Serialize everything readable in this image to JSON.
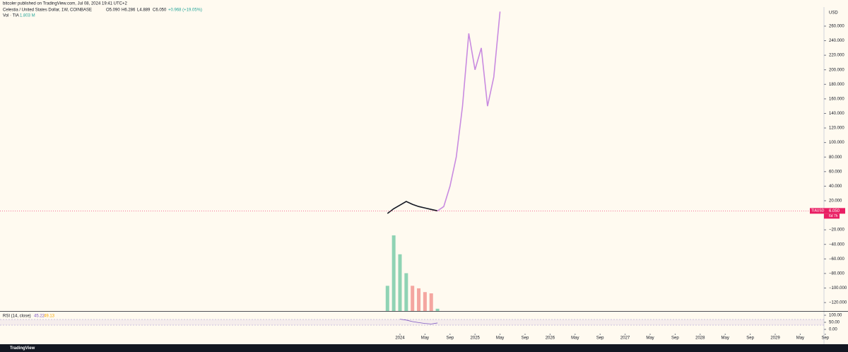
{
  "header": {
    "publisher": "bitcoler published on TradingView.com, Jul 08, 2024 19:41 UTC+2"
  },
  "legend": {
    "symbol": "Celestia / United States Dollar, 1W, COINBASE",
    "ohlc": [
      "O5.090",
      "H6.286",
      "L4.889",
      "C6.050",
      "+0.968 (+19.05%)"
    ],
    "volume_label": "Vol · TIA",
    "volume_value": "1.803 M"
  },
  "footer": {
    "brand": "TradingView"
  },
  "chart_data": {
    "type": "line",
    "currency": "USD",
    "x": [
      "2023-11",
      "2023-12",
      "2024-01",
      "2024-02",
      "2024-03",
      "2024-04",
      "2024-05",
      "2024-06",
      "2024-07",
      "2024-08",
      "2024-09",
      "2024-10",
      "2024-11",
      "2024-12",
      "2025-01",
      "2025-02",
      "2025-03",
      "2025-04",
      "2025-05"
    ],
    "series": [
      {
        "name": "TIAUSD",
        "color": "#131722",
        "values": [
          2.5,
          9,
          14,
          19,
          15,
          12,
          10,
          8,
          6.05,
          null,
          null,
          null,
          null,
          null,
          null,
          null,
          null,
          null,
          null
        ]
      },
      {
        "name": "Projection",
        "color": "#c98be0",
        "values": [
          null,
          null,
          null,
          null,
          null,
          null,
          null,
          null,
          6,
          12,
          40,
          80,
          150,
          250,
          200,
          230,
          150,
          190,
          280
        ]
      }
    ],
    "ylim": [
      -131.6,
      286.2
    ],
    "yticks": [
      {
        "value": 260,
        "label": "260.000"
      },
      {
        "value": 240,
        "label": "240.000"
      },
      {
        "value": 220,
        "label": "220.000"
      },
      {
        "value": 200,
        "label": "200.000"
      },
      {
        "value": 180,
        "label": "180.000"
      },
      {
        "value": 160,
        "label": "160.000"
      },
      {
        "value": 140,
        "label": "140.000"
      },
      {
        "value": 120,
        "label": "120.000"
      },
      {
        "value": 100,
        "label": "100.000"
      },
      {
        "value": 80,
        "label": "80.000"
      },
      {
        "value": 60,
        "label": "60.000"
      },
      {
        "value": 40,
        "label": "40.000"
      },
      {
        "value": 20,
        "label": "20.000"
      },
      {
        "value": -20,
        "label": "−20.000"
      },
      {
        "value": -40,
        "label": "−40.000"
      },
      {
        "value": -60,
        "label": "−60.000"
      },
      {
        "value": -80,
        "label": "−80.000"
      },
      {
        "value": -100,
        "label": "−100.000"
      },
      {
        "value": -120,
        "label": "−120.000"
      }
    ],
    "last_price": {
      "symbol": "TIAUSD",
      "value": 6.05,
      "label": "6.050",
      "countdown": "6d 7h"
    },
    "volume": {
      "x": [
        "2023-11",
        "2023-12",
        "2024-01",
        "2024-02",
        "2024-03",
        "2024-04",
        "2024-05",
        "2024-06",
        "2024-07"
      ],
      "values": [
        20,
        60,
        45,
        30,
        20,
        18,
        15,
        14,
        1.803
      ],
      "colors": [
        "#8fd3b4",
        "#8fd3b4",
        "#8fd3b4",
        "#8fd3b4",
        "#f4a6a0",
        "#f4a6a0",
        "#f4a6a0",
        "#f4a6a0",
        "#8fd3b4"
      ]
    },
    "rsi": {
      "title": "RSI (14, close)",
      "value": 45.22,
      "ma": 49.13,
      "color": "#7e57c2",
      "ylim": [
        -25,
        125
      ],
      "yticks": [
        {
          "value": 100,
          "label": "100.00"
        },
        {
          "value": 50,
          "label": "50.00"
        },
        {
          "value": 0,
          "label": "0.00"
        }
      ],
      "x": [
        "2024-01",
        "2024-02",
        "2024-03",
        "2024-04",
        "2024-05",
        "2024-06",
        "2024-07"
      ],
      "values": [
        72,
        66,
        55,
        48,
        42,
        38,
        45.22
      ]
    },
    "xticks": [
      {
        "value": "2024-01",
        "label": "2024"
      },
      {
        "value": "2024-05",
        "label": "May"
      },
      {
        "value": "2024-09",
        "label": "Sep"
      },
      {
        "value": "2025-01",
        "label": "2025"
      },
      {
        "value": "2025-05",
        "label": "May"
      },
      {
        "value": "2025-09",
        "label": "Sep"
      },
      {
        "value": "2026-01",
        "label": "2026"
      },
      {
        "value": "2026-05",
        "label": "May"
      },
      {
        "value": "2026-09",
        "label": "Sep"
      },
      {
        "value": "2027-01",
        "label": "2027"
      },
      {
        "value": "2027-05",
        "label": "May"
      },
      {
        "value": "2027-09",
        "label": "Sep"
      },
      {
        "value": "2028-01",
        "label": "2028"
      },
      {
        "value": "2028-05",
        "label": "May"
      },
      {
        "value": "2028-09",
        "label": "Sep"
      },
      {
        "value": "2029-01",
        "label": "2029"
      },
      {
        "value": "2029-05",
        "label": "May"
      },
      {
        "value": "2029-09",
        "label": "Sep"
      }
    ]
  }
}
